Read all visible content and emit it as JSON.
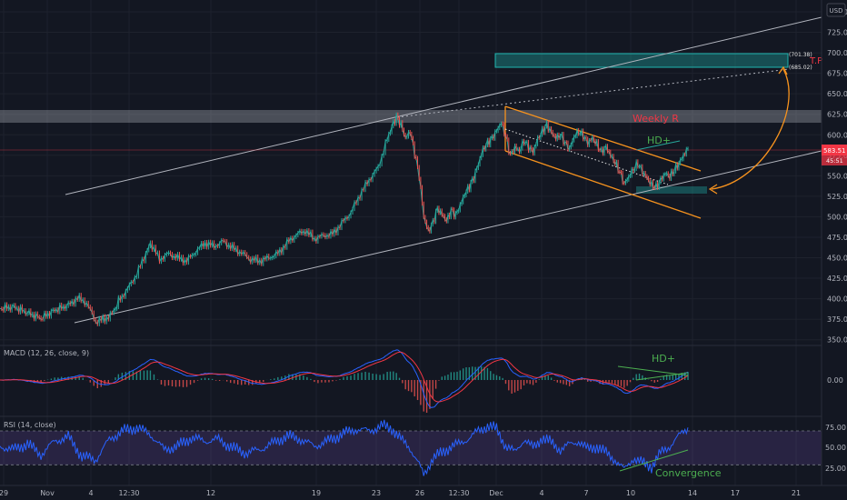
{
  "currency_label": "USD",
  "chart_data": {
    "type": "line",
    "price_pane": {
      "y_ticks": [
        350,
        375,
        400,
        425,
        450,
        475,
        500,
        525,
        550,
        575,
        600,
        625,
        650,
        675,
        700,
        725,
        750
      ],
      "ylim": [
        343,
        760
      ],
      "last_price": "583.51",
      "countdown": "45:51",
      "series": [
        {
          "t": 0,
          "v": 388
        },
        {
          "t": 3,
          "v": 390
        },
        {
          "t": 6,
          "v": 383
        },
        {
          "t": 9,
          "v": 376
        },
        {
          "t": 12,
          "v": 386
        },
        {
          "t": 15,
          "v": 392
        },
        {
          "t": 17,
          "v": 401
        },
        {
          "t": 19,
          "v": 395
        },
        {
          "t": 21,
          "v": 372
        },
        {
          "t": 23,
          "v": 375
        },
        {
          "t": 25,
          "v": 384
        },
        {
          "t": 26,
          "v": 397
        },
        {
          "t": 28,
          "v": 412
        },
        {
          "t": 30,
          "v": 430
        },
        {
          "t": 32,
          "v": 455
        },
        {
          "t": 33,
          "v": 468
        },
        {
          "t": 35,
          "v": 448
        },
        {
          "t": 37,
          "v": 455
        },
        {
          "t": 39,
          "v": 450
        },
        {
          "t": 41,
          "v": 446
        },
        {
          "t": 43,
          "v": 458
        },
        {
          "t": 45,
          "v": 468
        },
        {
          "t": 47,
          "v": 464
        },
        {
          "t": 49,
          "v": 470
        },
        {
          "t": 51,
          "v": 462
        },
        {
          "t": 53,
          "v": 456
        },
        {
          "t": 55,
          "v": 448
        },
        {
          "t": 57,
          "v": 446
        },
        {
          "t": 59,
          "v": 450
        },
        {
          "t": 61,
          "v": 455
        },
        {
          "t": 63,
          "v": 468
        },
        {
          "t": 65,
          "v": 478
        },
        {
          "t": 67,
          "v": 483
        },
        {
          "t": 69,
          "v": 473
        },
        {
          "t": 71,
          "v": 477
        },
        {
          "t": 73,
          "v": 479
        },
        {
          "t": 75,
          "v": 492
        },
        {
          "t": 77,
          "v": 505
        },
        {
          "t": 79,
          "v": 527
        },
        {
          "t": 81,
          "v": 545
        },
        {
          "t": 83,
          "v": 560
        },
        {
          "t": 85,
          "v": 595
        },
        {
          "t": 86,
          "v": 610
        },
        {
          "t": 87,
          "v": 622
        },
        {
          "t": 88,
          "v": 612
        },
        {
          "t": 89,
          "v": 596
        },
        {
          "t": 90,
          "v": 604
        },
        {
          "t": 91,
          "v": 578
        },
        {
          "t": 92,
          "v": 550
        },
        {
          "t": 93,
          "v": 500
        },
        {
          "t": 94,
          "v": 482
        },
        {
          "t": 95,
          "v": 493
        },
        {
          "t": 96,
          "v": 510
        },
        {
          "t": 97,
          "v": 503
        },
        {
          "t": 98,
          "v": 495
        },
        {
          "t": 99,
          "v": 508
        },
        {
          "t": 100,
          "v": 502
        },
        {
          "t": 101,
          "v": 514
        },
        {
          "t": 102,
          "v": 528
        },
        {
          "t": 103,
          "v": 537
        },
        {
          "t": 104,
          "v": 548
        },
        {
          "t": 105,
          "v": 565
        },
        {
          "t": 106,
          "v": 582
        },
        {
          "t": 107,
          "v": 590
        },
        {
          "t": 108,
          "v": 596
        },
        {
          "t": 109,
          "v": 605
        },
        {
          "t": 110,
          "v": 615
        },
        {
          "t": 111,
          "v": 598
        },
        {
          "t": 112,
          "v": 575
        },
        {
          "t": 113,
          "v": 585
        },
        {
          "t": 114,
          "v": 580
        },
        {
          "t": 115,
          "v": 593
        },
        {
          "t": 116,
          "v": 585
        },
        {
          "t": 117,
          "v": 579
        },
        {
          "t": 118,
          "v": 595
        },
        {
          "t": 119,
          "v": 604
        },
        {
          "t": 120,
          "v": 612
        },
        {
          "t": 121,
          "v": 603
        },
        {
          "t": 122,
          "v": 596
        },
        {
          "t": 123,
          "v": 600
        },
        {
          "t": 124,
          "v": 590
        },
        {
          "t": 125,
          "v": 583
        },
        {
          "t": 126,
          "v": 598
        },
        {
          "t": 127,
          "v": 604
        },
        {
          "t": 128,
          "v": 599
        },
        {
          "t": 129,
          "v": 590
        },
        {
          "t": 130,
          "v": 596
        },
        {
          "t": 131,
          "v": 588
        },
        {
          "t": 132,
          "v": 579
        },
        {
          "t": 133,
          "v": 585
        },
        {
          "t": 134,
          "v": 575
        },
        {
          "t": 135,
          "v": 566
        },
        {
          "t": 136,
          "v": 555
        },
        {
          "t": 137,
          "v": 540
        },
        {
          "t": 138,
          "v": 549
        },
        {
          "t": 139,
          "v": 558
        },
        {
          "t": 140,
          "v": 565
        },
        {
          "t": 141,
          "v": 555
        },
        {
          "t": 142,
          "v": 547
        },
        {
          "t": 143,
          "v": 539
        },
        {
          "t": 144,
          "v": 536
        },
        {
          "t": 145,
          "v": 545
        },
        {
          "t": 146,
          "v": 553
        },
        {
          "t": 147,
          "v": 549
        },
        {
          "t": 148,
          "v": 557
        },
        {
          "t": 149,
          "v": 565
        },
        {
          "t": 150,
          "v": 575
        },
        {
          "t": 151,
          "v": 583
        }
      ],
      "zones": [
        {
          "label": "Weekly R",
          "y0": 621,
          "y1": 637,
          "t0": 0,
          "t1": 178,
          "color": "#b2b5be"
        },
        {
          "label": "",
          "y0": 683,
          "y1": 702,
          "t0": 108,
          "t1": 171,
          "color": "#1fb5b0"
        },
        {
          "label": "",
          "y0": 530,
          "y1": 538,
          "t0": 137,
          "t1": 160,
          "color": "#1fb5b0"
        }
      ],
      "annotations": [
        "Weekly R",
        "HD+",
        "T.P"
      ],
      "price_labels": [
        "(701.38)",
        "(685.02)"
      ]
    },
    "macd_pane": {
      "title": "MACD (12, 26, close, 9)",
      "y_ticks": [
        "0.00"
      ],
      "annotation": "HD+"
    },
    "rsi_pane": {
      "title": "RSI (14, close)",
      "y_ticks": [
        "75.00",
        "50.00",
        "25.00"
      ],
      "ylim": [
        10,
        85
      ],
      "upper_band": 70,
      "lower_band": 30,
      "annotation": "Convergence",
      "series": [
        {
          "t": 0,
          "v": 52
        },
        {
          "t": 3,
          "v": 48
        },
        {
          "t": 6,
          "v": 55
        },
        {
          "t": 9,
          "v": 42
        },
        {
          "t": 12,
          "v": 58
        },
        {
          "t": 15,
          "v": 63
        },
        {
          "t": 18,
          "v": 40
        },
        {
          "t": 21,
          "v": 36
        },
        {
          "t": 24,
          "v": 60
        },
        {
          "t": 27,
          "v": 70
        },
        {
          "t": 30,
          "v": 74
        },
        {
          "t": 33,
          "v": 66
        },
        {
          "t": 36,
          "v": 48
        },
        {
          "t": 39,
          "v": 52
        },
        {
          "t": 42,
          "v": 62
        },
        {
          "t": 45,
          "v": 58
        },
        {
          "t": 48,
          "v": 60
        },
        {
          "t": 51,
          "v": 50
        },
        {
          "t": 54,
          "v": 44
        },
        {
          "t": 57,
          "v": 48
        },
        {
          "t": 60,
          "v": 56
        },
        {
          "t": 63,
          "v": 64
        },
        {
          "t": 66,
          "v": 60
        },
        {
          "t": 69,
          "v": 52
        },
        {
          "t": 72,
          "v": 58
        },
        {
          "t": 75,
          "v": 66
        },
        {
          "t": 78,
          "v": 72
        },
        {
          "t": 81,
          "v": 70
        },
        {
          "t": 84,
          "v": 76
        },
        {
          "t": 86,
          "v": 73
        },
        {
          "t": 88,
          "v": 60
        },
        {
          "t": 90,
          "v": 50
        },
        {
          "t": 92,
          "v": 30
        },
        {
          "t": 93,
          "v": 18
        },
        {
          "t": 95,
          "v": 38
        },
        {
          "t": 97,
          "v": 44
        },
        {
          "t": 99,
          "v": 52
        },
        {
          "t": 101,
          "v": 55
        },
        {
          "t": 103,
          "v": 62
        },
        {
          "t": 105,
          "v": 70
        },
        {
          "t": 107,
          "v": 76
        },
        {
          "t": 109,
          "v": 72
        },
        {
          "t": 111,
          "v": 52
        },
        {
          "t": 113,
          "v": 45
        },
        {
          "t": 115,
          "v": 60
        },
        {
          "t": 117,
          "v": 50
        },
        {
          "t": 119,
          "v": 62
        },
        {
          "t": 121,
          "v": 56
        },
        {
          "t": 123,
          "v": 48
        },
        {
          "t": 125,
          "v": 54
        },
        {
          "t": 127,
          "v": 58
        },
        {
          "t": 129,
          "v": 48
        },
        {
          "t": 131,
          "v": 52
        },
        {
          "t": 133,
          "v": 44
        },
        {
          "t": 135,
          "v": 36
        },
        {
          "t": 137,
          "v": 24
        },
        {
          "t": 139,
          "v": 38
        },
        {
          "t": 141,
          "v": 32
        },
        {
          "t": 143,
          "v": 28
        },
        {
          "t": 145,
          "v": 44
        },
        {
          "t": 147,
          "v": 52
        },
        {
          "t": 149,
          "v": 64
        },
        {
          "t": 151,
          "v": 74
        }
      ]
    },
    "x_ticks": [
      "29",
      "Nov",
      "4",
      "12:30",
      "12",
      "19",
      "23",
      "26",
      "12:30",
      "Dec",
      "4",
      "7",
      "10",
      "14",
      "17",
      "21"
    ]
  }
}
